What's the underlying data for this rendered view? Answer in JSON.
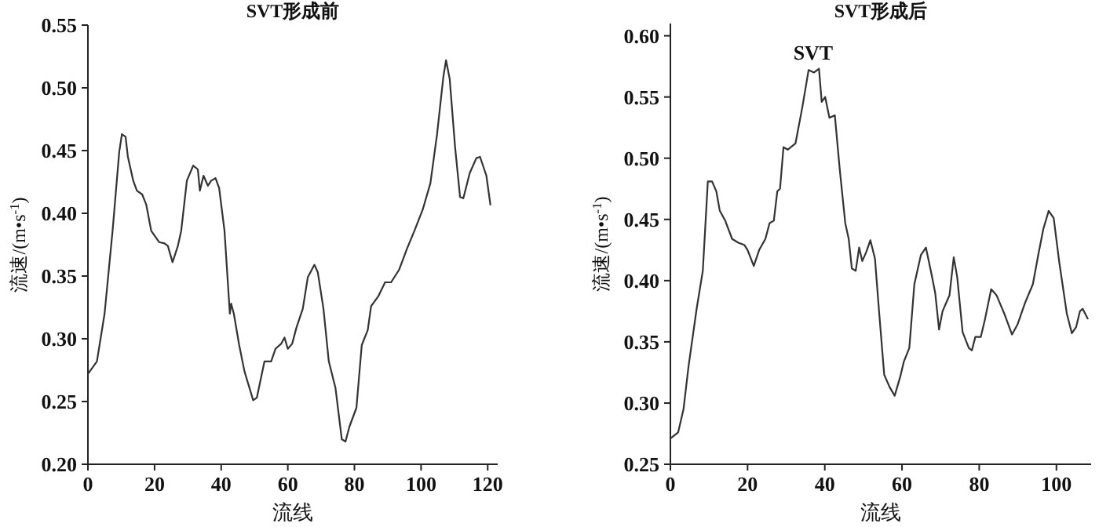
{
  "chart_data": [
    {
      "type": "line",
      "title": "SVT形成前",
      "xlabel": "流线",
      "ylabel": "流速/(m•s$^{-1}$)",
      "xlim": [
        0,
        123
      ],
      "ylim": [
        0.2,
        0.55
      ],
      "xticks": [
        0,
        20,
        40,
        60,
        80,
        100,
        120
      ],
      "yticks": [
        {
          "value": 0.2,
          "label": "0.20"
        },
        {
          "value": 0.25,
          "label": "0.25"
        },
        {
          "value": 0.3,
          "label": "0.30"
        },
        {
          "value": 0.35,
          "label": "0.35"
        },
        {
          "value": 0.4,
          "label": "0.40"
        },
        {
          "value": 0.45,
          "label": "0.45"
        },
        {
          "value": 0.5,
          "label": "0.50"
        },
        {
          "value": 0.55,
          "label": "0.55"
        }
      ],
      "grid": false,
      "marker": "none",
      "line_style": "solid",
      "series": [
        {
          "color": "#333333",
          "x": [
            0,
            2.7,
            5,
            7.4,
            9.4,
            10.2,
            11.3,
            12,
            13.6,
            14.7,
            16.3,
            17.5,
            19,
            21.4,
            23,
            24,
            25.4,
            27,
            28,
            29.7,
            31.6,
            33,
            33.6,
            34.7,
            36,
            37,
            38.3,
            39.4,
            41,
            42.6,
            43,
            43.8,
            45.4,
            47,
            49.6,
            50.7,
            53,
            55,
            56.3,
            58,
            59,
            60,
            61.3,
            62.6,
            64.5,
            66,
            68,
            69,
            70.7,
            72.3,
            74.3,
            76.2,
            77.3,
            78.5,
            80.6,
            82.2,
            84,
            85,
            87.2,
            89.2,
            91,
            93.4,
            95.8,
            98,
            100.5,
            102.8,
            104.8,
            106.7,
            107.5,
            108.6,
            110.2,
            111.7,
            112.7,
            114.6,
            116.6,
            117.7,
            119.6,
            120.8
          ],
          "values": [
            0.272,
            0.282,
            0.32,
            0.386,
            0.449,
            0.463,
            0.461,
            0.445,
            0.426,
            0.418,
            0.415,
            0.407,
            0.386,
            0.377,
            0.376,
            0.374,
            0.361,
            0.374,
            0.386,
            0.426,
            0.438,
            0.435,
            0.418,
            0.43,
            0.422,
            0.426,
            0.428,
            0.42,
            0.386,
            0.32,
            0.328,
            0.32,
            0.295,
            0.274,
            0.251,
            0.253,
            0.282,
            0.282,
            0.292,
            0.296,
            0.301,
            0.292,
            0.296,
            0.309,
            0.324,
            0.349,
            0.359,
            0.353,
            0.324,
            0.282,
            0.261,
            0.22,
            0.218,
            0.23,
            0.245,
            0.295,
            0.307,
            0.326,
            0.334,
            0.345,
            0.345,
            0.355,
            0.372,
            0.386,
            0.403,
            0.424,
            0.463,
            0.509,
            0.522,
            0.507,
            0.453,
            0.413,
            0.412,
            0.432,
            0.444,
            0.445,
            0.43,
            0.407
          ]
        }
      ]
    },
    {
      "type": "line",
      "title": "SVT形成后",
      "xlabel": "流线",
      "ylabel": "流速/(m•s$^{-1}$)",
      "xlim": [
        0,
        109
      ],
      "ylim": [
        0.25,
        0.61
      ],
      "xticks": [
        0,
        20,
        40,
        60,
        80,
        100
      ],
      "yticks": [
        {
          "value": 0.25,
          "label": "0.25"
        },
        {
          "value": 0.3,
          "label": "0.30"
        },
        {
          "value": 0.35,
          "label": "0.35"
        },
        {
          "value": 0.4,
          "label": "0.40"
        },
        {
          "value": 0.45,
          "label": "0.45"
        },
        {
          "value": 0.5,
          "label": "0.50"
        },
        {
          "value": 0.55,
          "label": "0.55"
        },
        {
          "value": 0.6,
          "label": "0.60"
        }
      ],
      "grid": false,
      "marker": "none",
      "line_style": "solid",
      "annotations": [
        {
          "text": "SVT",
          "x": 37,
          "y": 0.573
        }
      ],
      "series": [
        {
          "color": "#333333",
          "x": [
            0,
            2,
            3.4,
            4.7,
            6.8,
            8.4,
            9.7,
            10.8,
            11.9,
            12.8,
            14.2,
            16,
            17.6,
            19.2,
            20,
            21.6,
            23,
            24.6,
            25.7,
            26.8,
            27.7,
            28.4,
            29.3,
            30.4,
            32.4,
            34.2,
            35.8,
            37.2,
            38.5,
            39.2,
            40.1,
            41.2,
            42.6,
            43.9,
            45.3,
            46.2,
            47,
            48,
            48.9,
            49.7,
            50.7,
            51.8,
            53,
            54,
            55.4,
            56.8,
            58.1,
            59.5,
            60.5,
            61.9,
            63.2,
            64.9,
            66.2,
            67.6,
            68.6,
            69.6,
            70.5,
            72.3,
            73.4,
            74.3,
            75.7,
            77.3,
            78.1,
            79,
            80.4,
            81.4,
            83.1,
            84.5,
            86.5,
            88.5,
            89.9,
            91.9,
            93.9,
            95.3,
            96.6,
            98,
            99.3,
            100.7,
            102.7,
            104,
            105.1,
            106.1,
            106.8,
            108.1
          ],
          "values": [
            0.271,
            0.276,
            0.295,
            0.33,
            0.377,
            0.408,
            0.481,
            0.481,
            0.473,
            0.457,
            0.449,
            0.434,
            0.431,
            0.429,
            0.425,
            0.412,
            0.425,
            0.434,
            0.447,
            0.449,
            0.473,
            0.475,
            0.509,
            0.507,
            0.512,
            0.542,
            0.572,
            0.57,
            0.573,
            0.546,
            0.55,
            0.533,
            0.535,
            0.49,
            0.447,
            0.434,
            0.41,
            0.408,
            0.427,
            0.416,
            0.423,
            0.433,
            0.418,
            0.377,
            0.323,
            0.313,
            0.306,
            0.321,
            0.334,
            0.345,
            0.397,
            0.421,
            0.427,
            0.406,
            0.39,
            0.36,
            0.375,
            0.388,
            0.419,
            0.403,
            0.358,
            0.345,
            0.343,
            0.354,
            0.354,
            0.367,
            0.393,
            0.388,
            0.373,
            0.356,
            0.364,
            0.382,
            0.397,
            0.421,
            0.442,
            0.457,
            0.451,
            0.416,
            0.373,
            0.357,
            0.362,
            0.375,
            0.377,
            0.369
          ]
        }
      ]
    }
  ]
}
